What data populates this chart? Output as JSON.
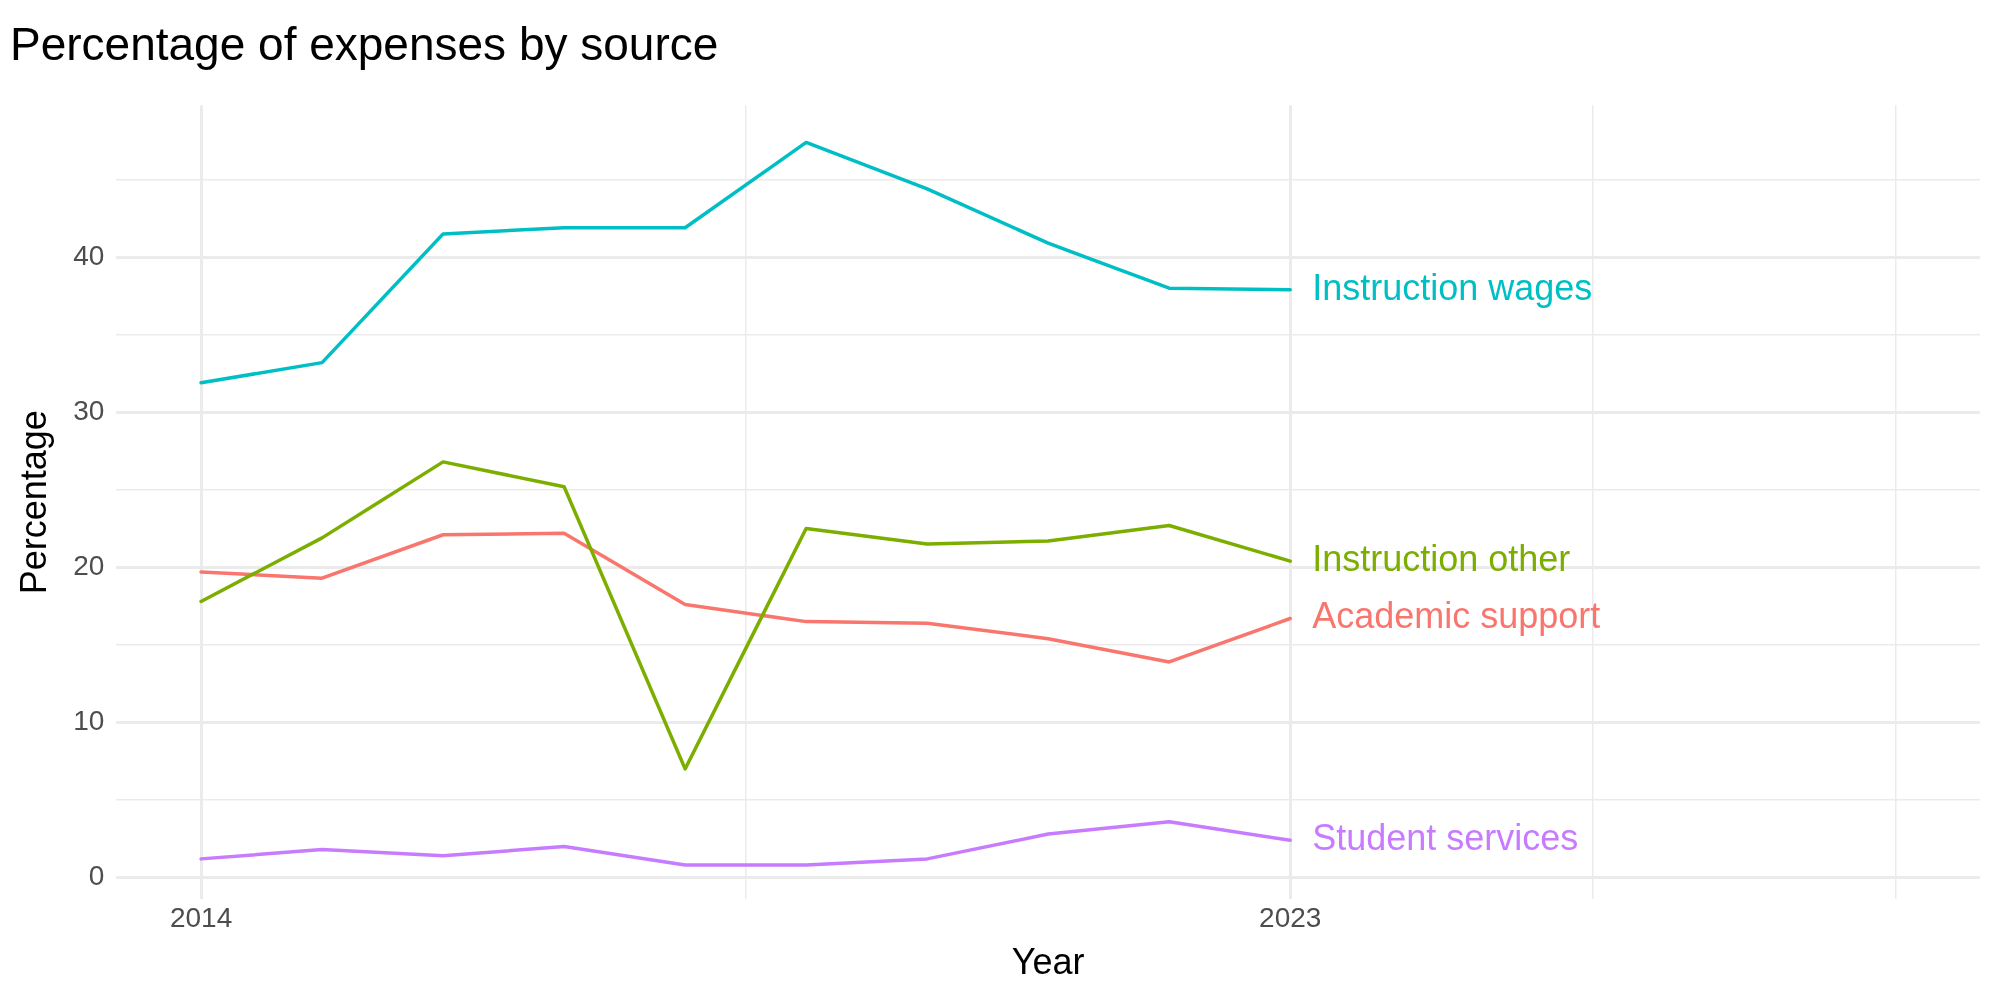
{
  "chart_data": {
    "type": "line",
    "title": "Percentage of expenses by source",
    "xlabel": "Year",
    "ylabel": "Percentage",
    "x": [
      2014,
      2015,
      2016,
      2017,
      2018,
      2019,
      2020,
      2021,
      2022,
      2023
    ],
    "series": [
      {
        "name": "Instruction wages",
        "color": "#00bfc4",
        "values": [
          31.9,
          33.2,
          41.5,
          41.9,
          41.9,
          47.4,
          44.4,
          40.9,
          38.0,
          37.9
        ]
      },
      {
        "name": "Instruction other",
        "color": "#7cae00",
        "values": [
          17.8,
          21.9,
          26.8,
          25.2,
          7.0,
          22.5,
          21.5,
          21.7,
          22.7,
          20.4
        ]
      },
      {
        "name": "Academic support",
        "color": "#f8766d",
        "values": [
          19.7,
          19.3,
          22.1,
          22.2,
          17.6,
          16.5,
          16.4,
          15.4,
          13.9,
          16.7
        ]
      },
      {
        "name": "Student services",
        "color": "#c77cff",
        "values": [
          1.2,
          1.8,
          1.4,
          2.0,
          0.8,
          0.8,
          1.2,
          2.8,
          3.6,
          2.4
        ]
      }
    ],
    "xlim": [
      2013.3,
      2028.7
    ],
    "xticks": [
      2014,
      {
        "value": 2018.5,
        "label": null
      },
      2023,
      {
        "value": 2025.5,
        "label": null
      },
      {
        "value": 2028,
        "label": null
      }
    ],
    "ylim": [
      -1.4,
      49.8
    ],
    "yticks": [
      0,
      {
        "value": 5,
        "label": null
      },
      10,
      {
        "value": 15,
        "label": null
      },
      20,
      {
        "value": 25,
        "label": null
      },
      30,
      {
        "value": 35,
        "label": null
      },
      40,
      {
        "value": 45,
        "label": null
      }
    ],
    "grid": true,
    "legend": false,
    "marker": "none",
    "line_style": "solid"
  }
}
